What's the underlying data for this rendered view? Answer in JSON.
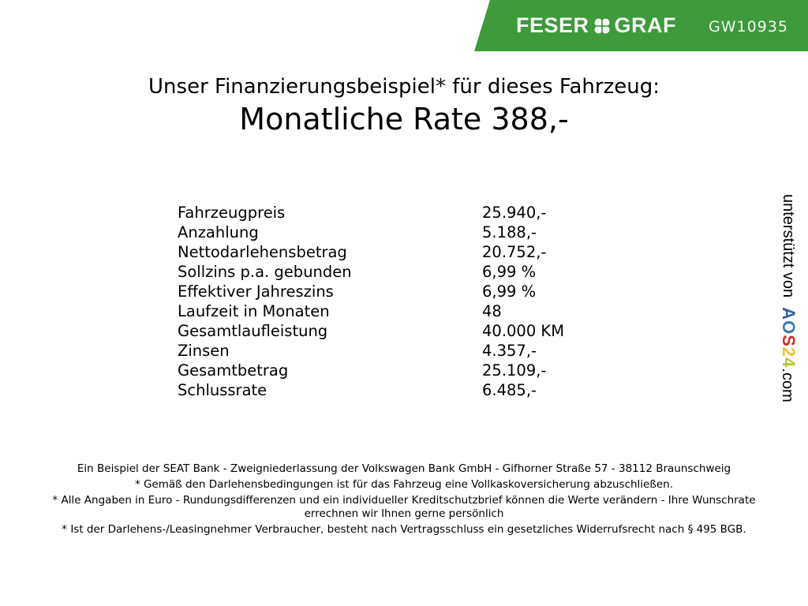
{
  "header": {
    "brand_left": "FESER",
    "brand_right": "GRAF",
    "vehicle_code": "GW10935",
    "brand_color": "#3e9a3b",
    "logo_icon": "clover-icon"
  },
  "subtitle": "Unser Finanzierungsbeispiel* für dieses Fahrzeug:",
  "title": "Monatliche Rate 388,-",
  "details": [
    {
      "label": "Fahrzeugpreis",
      "value": "25.940,-"
    },
    {
      "label": "Anzahlung",
      "value": "5.188,-"
    },
    {
      "label": "Nettodarlehensbetrag",
      "value": "20.752,-"
    },
    {
      "label": "Sollzins p.a. gebunden",
      "value": "6,99 %"
    },
    {
      "label": "Effektiver Jahreszins",
      "value": "6,99 %"
    },
    {
      "label": "Laufzeit in Monaten",
      "value": "48"
    },
    {
      "label": "Gesamtlaufleistung",
      "value": "40.000 KM"
    },
    {
      "label": "Zinsen",
      "value": "4.357,-"
    },
    {
      "label": "Gesamtbetrag",
      "value": "25.109,-"
    },
    {
      "label": "Schlussrate",
      "value": "6.485,-"
    }
  ],
  "side": {
    "text": "unterstützt von",
    "logo": "AOS24",
    "suffix": ".com"
  },
  "footer": [
    "Ein Beispiel der SEAT Bank - Zweigniederlassung der Volkswagen Bank GmbH - Gifhorner Straße 57 - 38112 Braunschweig",
    "* Gemäß den Darlehensbedingungen ist für das Fahrzeug eine Vollkaskoversicherung abzuschließen.",
    "* Alle Angaben in Euro - Rundungsdifferenzen und ein individueller Kreditschutzbrief können die Werte verändern - Ihre Wunschrate errechnen wir Ihnen gerne persönlich",
    "* Ist der Darlehens-/Leasingnehmer Verbraucher, besteht nach Vertragsschluss ein gesetzliches Widerrufsrecht nach § 495 BGB."
  ]
}
